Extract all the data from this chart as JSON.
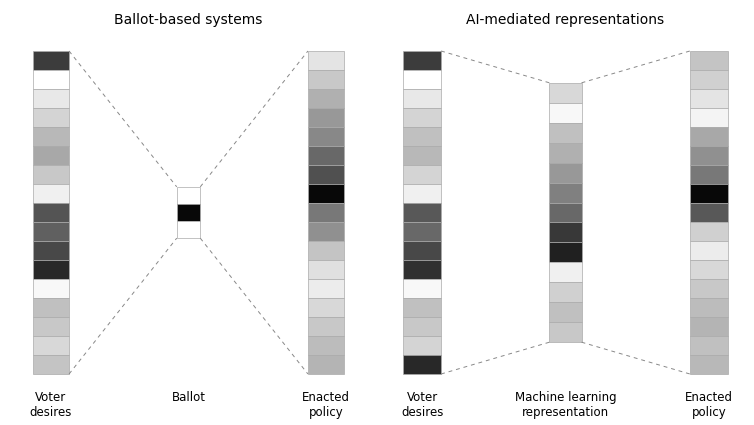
{
  "left_title": "Ballot-based systems",
  "right_title": "AI-mediated representations",
  "col1_colors": [
    "#3c3c3c",
    "#ffffff",
    "#e8e8e8",
    "#d4d4d4",
    "#b8b8b8",
    "#a8a8a8",
    "#c8c8c8",
    "#f0f0f0",
    "#545454",
    "#606060",
    "#484848",
    "#282828",
    "#f8f8f8",
    "#c0c0c0",
    "#c8c8c8",
    "#d8d8d8",
    "#c4c4c4"
  ],
  "col2_colors": [
    "#ffffff",
    "#080808",
    "#ffffff"
  ],
  "col3_colors": [
    "#e4e4e4",
    "#c8c8c8",
    "#b0b0b0",
    "#989898",
    "#888888",
    "#686868",
    "#505050",
    "#080808",
    "#787878",
    "#909090",
    "#c4c4c4",
    "#e0e0e0",
    "#ececec",
    "#d8d8d8",
    "#c8c8c8",
    "#bcbcbc",
    "#b4b4b4"
  ],
  "col4_colors": [
    "#3c3c3c",
    "#ffffff",
    "#e8e8e8",
    "#d4d4d4",
    "#c0c0c0",
    "#b8b8b8",
    "#d4d4d4",
    "#f0f0f0",
    "#585858",
    "#686868",
    "#484848",
    "#303030",
    "#f8f8f8",
    "#c0c0c0",
    "#c8c8c8",
    "#d4d4d4",
    "#282828"
  ],
  "col5_colors": [
    "#d8d8d8",
    "#f8f8f8",
    "#c0c0c0",
    "#b0b0b0",
    "#989898",
    "#808080",
    "#686868",
    "#383838",
    "#202020",
    "#f0f0f0",
    "#d0d0d0",
    "#c0c0c0",
    "#c8c8c8"
  ],
  "col6_colors": [
    "#c4c4c4",
    "#d0d0d0",
    "#e4e4e4",
    "#f4f4f4",
    "#a8a8a8",
    "#909090",
    "#787878",
    "#080808",
    "#585858",
    "#d0d0d0",
    "#ececec",
    "#d8d8d8",
    "#c8c8c8",
    "#bcbcbc",
    "#b4b4b4",
    "#c0c0c0",
    "#b8b8b8"
  ],
  "label1": "Voter\ndesires",
  "label2": "Ballot",
  "label3": "Enacted\npolicy",
  "label4": "Voter\ndesires",
  "label5": "Machine learning\nrepresentation",
  "label6": "Enacted\npolicy",
  "bg_color": "#ffffff",
  "edge_color": "#aaaaaa",
  "line_color": "#888888"
}
